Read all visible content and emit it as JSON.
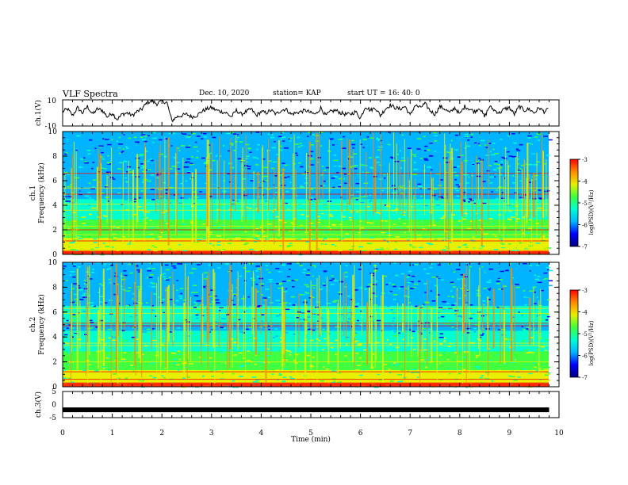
{
  "header": {
    "title": "VLF Spectra",
    "date": "Dec. 10, 2020",
    "station": "station= KAP",
    "start": "start UT =  16: 40: 0"
  },
  "chart_data": [
    {
      "type": "line",
      "panel": "ch1-voltage",
      "ylabel": "ch.1(V)",
      "ylim": [
        -10,
        10
      ],
      "yticks": [
        "10",
        "-10"
      ],
      "xlim": [
        0,
        10
      ],
      "series": [
        {
          "x": [
            0,
            0.1,
            0.2,
            0.3,
            0.4,
            0.5,
            0.6,
            0.7,
            0.8,
            0.9,
            1.0,
            1.1,
            1.2,
            1.3,
            1.4,
            1.5,
            1.6,
            1.7,
            1.8,
            1.9,
            2.0,
            2.1,
            2.2,
            2.3,
            2.4,
            2.5,
            2.6,
            2.7,
            2.8,
            2.9,
            3.0,
            3.1,
            3.2,
            3.3,
            3.4,
            3.5,
            3.6,
            3.7,
            3.8,
            3.9,
            4.0,
            4.1,
            4.2,
            4.3,
            4.4,
            4.5,
            4.6,
            4.7,
            4.8,
            4.9,
            5.0,
            5.1,
            5.2,
            5.3,
            5.4,
            5.5,
            5.6,
            5.7,
            5.8,
            5.9,
            6.0,
            6.1,
            6.2,
            6.3,
            6.4,
            6.5,
            6.6,
            6.7,
            6.8,
            6.9,
            7.0,
            7.1,
            7.2,
            7.3,
            7.4,
            7.5,
            7.6,
            7.7,
            7.8,
            7.9,
            8.0,
            8.1,
            8.2,
            8.3,
            8.4,
            8.5,
            8.6,
            8.7,
            8.8,
            8.9,
            9.0,
            9.1,
            9.2,
            9.3,
            9.4,
            9.5,
            9.6,
            9.7,
            9.8
          ],
          "values": [
            1,
            3,
            -2,
            4,
            0,
            5,
            -1,
            3,
            2,
            -3,
            0,
            -5,
            -1,
            0,
            -2,
            1,
            3,
            8,
            9,
            7,
            9,
            8,
            -6,
            -3,
            -2,
            -1,
            -3,
            -2,
            1,
            3,
            4,
            2,
            1,
            0,
            -3,
            2,
            -1,
            1,
            3,
            -2,
            1,
            0,
            2,
            -1,
            2,
            3,
            -1,
            0,
            1,
            2,
            0,
            -1,
            4,
            -2,
            1,
            2,
            0,
            -1,
            -1,
            1,
            -4,
            5,
            2,
            4,
            -2,
            3,
            6,
            4,
            3,
            5,
            -2,
            6,
            4,
            7,
            2,
            -1,
            5,
            3,
            0,
            4,
            -1,
            5,
            3,
            1,
            4,
            -3,
            5,
            2,
            0,
            3,
            4,
            -1,
            5,
            2,
            3,
            0,
            4,
            1,
            3
          ]
        }
      ]
    },
    {
      "type": "heatmap",
      "panel": "ch1-spectrogram",
      "ylabel": "ch.1 Frequency (kHz)",
      "ylim": [
        0,
        10
      ],
      "yticks": [
        "0",
        "2",
        "4",
        "6",
        "8",
        "10"
      ],
      "xlim": [
        0,
        10
      ],
      "colorbar": {
        "label": "log(PSD)(V²/Hz)",
        "range": [
          -7,
          -3
        ],
        "ticks": [
          "-3",
          "-4",
          "-5",
          "-6",
          "-7"
        ]
      }
    },
    {
      "type": "heatmap",
      "panel": "ch2-spectrogram",
      "ylabel": "ch.2 Frequency (kHz)",
      "ylim": [
        0,
        10
      ],
      "yticks": [
        "0",
        "2",
        "4",
        "6",
        "8",
        "10"
      ],
      "xlim": [
        0,
        10
      ],
      "colorbar": {
        "label": "log(PSD)(V²/Hz)",
        "range": [
          -7,
          -3
        ],
        "ticks": [
          "-3",
          "-4",
          "-5",
          "-6",
          "-7"
        ]
      }
    },
    {
      "type": "line",
      "panel": "ch3-voltage",
      "ylabel": "ch.3(V)",
      "ylim": [
        -5,
        5
      ],
      "yticks": [
        "5",
        "0",
        "-5"
      ],
      "xlim": [
        0,
        10
      ],
      "xlabel": "Time (min)",
      "xticks": [
        "0",
        "1",
        "2",
        "3",
        "4",
        "5",
        "6",
        "7",
        "8",
        "9",
        "10"
      ],
      "series": [
        {
          "x": [
            0,
            9.8
          ],
          "values": [
            -2,
            -2
          ]
        }
      ]
    }
  ],
  "colors": {
    "axis": "#000000",
    "trace": "#000000",
    "colormap": [
      "#00007a",
      "#0000ff",
      "#00b4ff",
      "#00ffd0",
      "#40ff40",
      "#e6f000",
      "#ff8a00",
      "#ff0000",
      "#ffffff"
    ]
  }
}
